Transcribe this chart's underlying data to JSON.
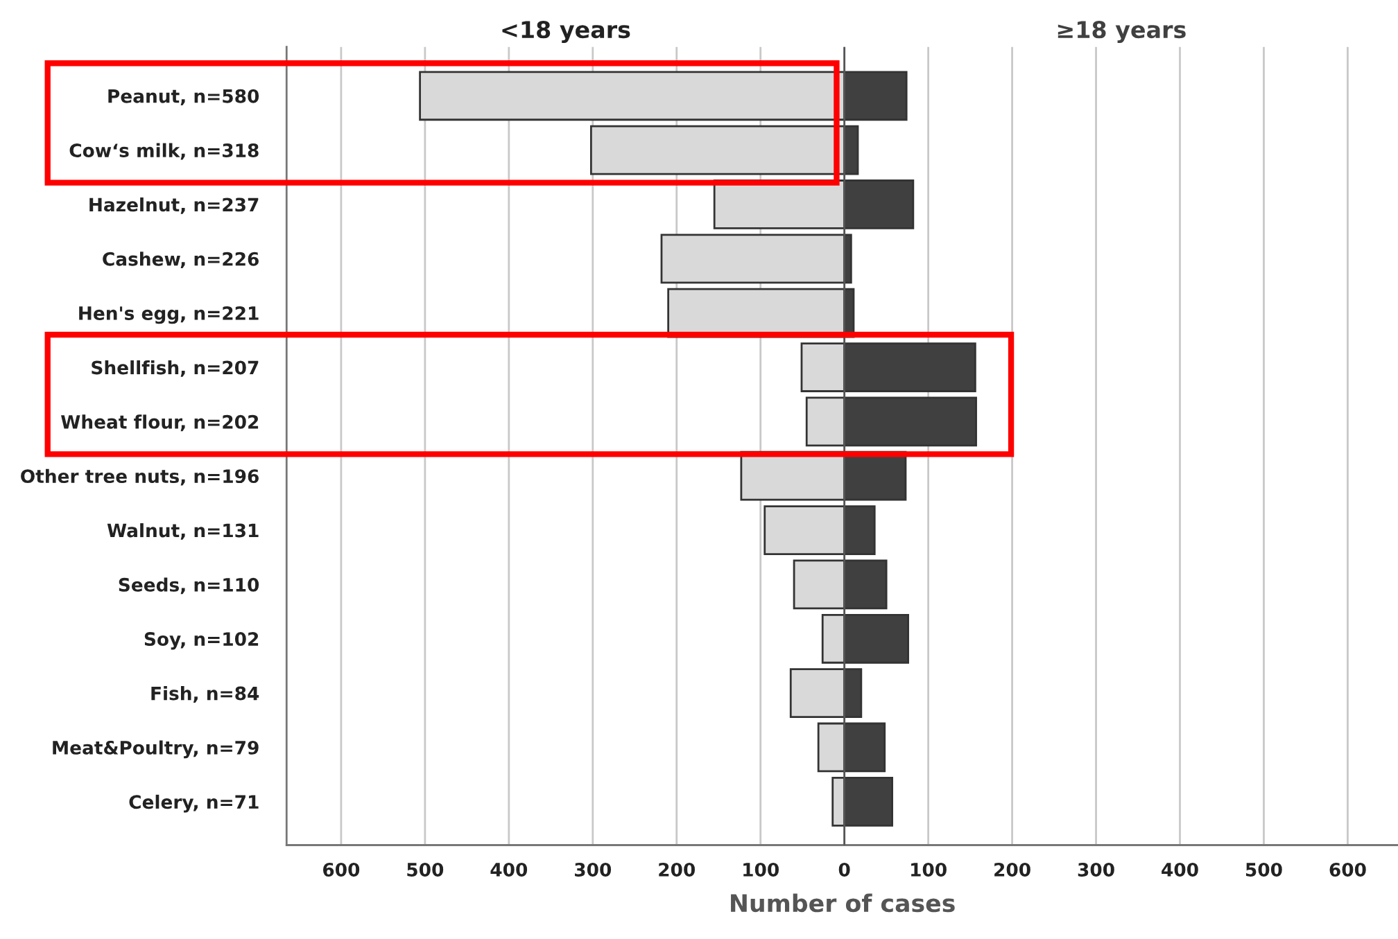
{
  "chart_data": {
    "type": "bar",
    "orientation": "horizontal",
    "xlabel": "Number of cases",
    "categories": [
      "Peanut, n=580",
      "Cow‘s milk, n=318",
      "Hazelnut, n=237",
      "Cashew, n=226",
      "Hen's egg, n=221",
      "Shellfish, n=207",
      "Wheat flour, n=202",
      "Other tree nuts, n=196",
      "Walnut, n=131",
      "Seeds, n=110",
      "Soy, n=102",
      "Fish, n=84",
      "Meat&Poultry, n=79",
      "Celery, n=71"
    ],
    "series": [
      {
        "name": "<18 years",
        "color": "#d9d9d9",
        "values": [
          -506,
          -302,
          -155,
          -218,
          -210,
          -51,
          -45,
          -123,
          -95,
          -60,
          -26,
          -64,
          -31,
          -14
        ]
      },
      {
        "name": "≥18 years",
        "color": "#404040",
        "values": [
          74,
          16,
          82,
          8,
          11,
          156,
          157,
          73,
          36,
          50,
          76,
          20,
          48,
          57
        ]
      }
    ],
    "xlim": [
      -665,
      660
    ],
    "xticks": [
      {
        "value": -600,
        "label": "600"
      },
      {
        "value": -500,
        "label": "500"
      },
      {
        "value": -400,
        "label": "400"
      },
      {
        "value": -300,
        "label": "300"
      },
      {
        "value": -200,
        "label": "200"
      },
      {
        "value": -100,
        "label": "100"
      },
      0,
      100,
      200,
      300,
      400,
      500,
      600
    ],
    "grid": "x",
    "legend": "top",
    "stacked": true
  }
}
